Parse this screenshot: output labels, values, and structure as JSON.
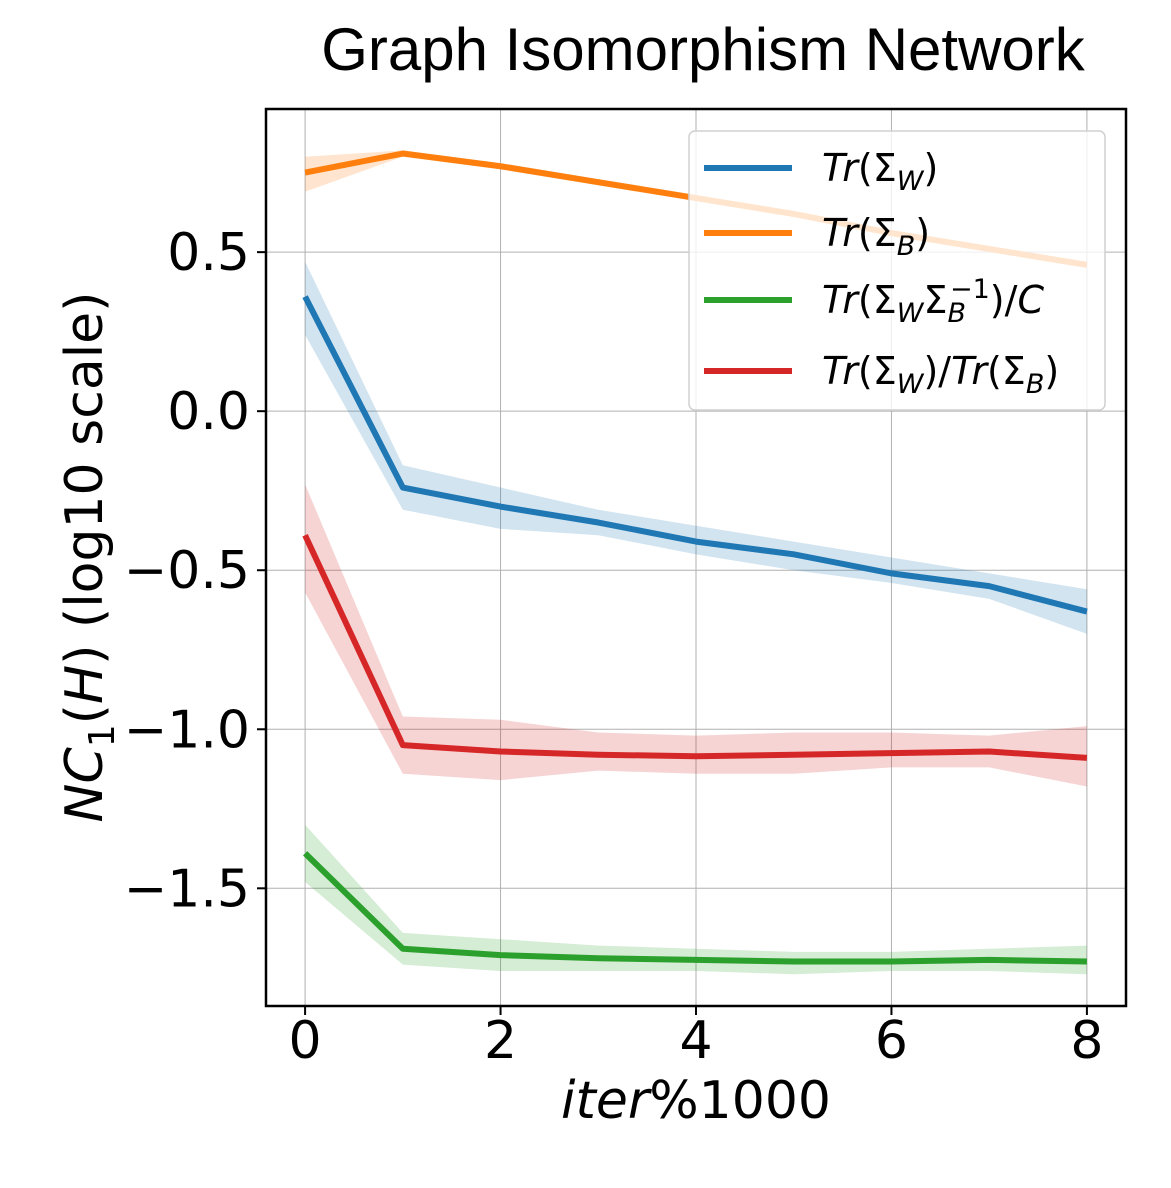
{
  "chart_data": {
    "type": "line",
    "title": "Graph Isomorphism Network",
    "xlabel": "iter%1000",
    "ylabel": "NC1(H) (log10 scale)",
    "xlim": [
      -0.4,
      8.4
    ],
    "ylim": [
      -1.87,
      0.95
    ],
    "xticks": [
      0,
      2,
      4,
      6,
      8
    ],
    "xtick_labels": [
      "0",
      "2",
      "4",
      "6",
      "8"
    ],
    "yticks": [
      0.5,
      0.0,
      -0.5,
      -1.0,
      -1.5
    ],
    "ytick_labels": [
      "0.5",
      "0.0",
      "−0.5",
      "−1.0",
      "−1.5"
    ],
    "grid": true,
    "legend_position": "top-right",
    "x": [
      0,
      1,
      2,
      3,
      4,
      5,
      6,
      7,
      8
    ],
    "series": [
      {
        "name": "Tr(ΣW)",
        "color": "#1f77b4",
        "values": [
          0.36,
          -0.24,
          -0.3,
          -0.35,
          -0.41,
          -0.45,
          -0.51,
          -0.55,
          -0.63
        ],
        "lower": [
          0.24,
          -0.31,
          -0.37,
          -0.39,
          -0.45,
          -0.5,
          -0.54,
          -0.59,
          -0.7
        ],
        "upper": [
          0.47,
          -0.17,
          -0.24,
          -0.31,
          -0.36,
          -0.41,
          -0.46,
          -0.51,
          -0.56
        ]
      },
      {
        "name": "Tr(ΣB)",
        "color": "#ff7f0e",
        "values": [
          0.75,
          0.81,
          0.77,
          0.72,
          0.67,
          0.62,
          0.56,
          0.51,
          0.46
        ],
        "lower": [
          0.69,
          0.8,
          0.76,
          0.71,
          0.66,
          0.61,
          0.55,
          0.5,
          0.45
        ],
        "upper": [
          0.8,
          0.82,
          0.78,
          0.73,
          0.68,
          0.63,
          0.57,
          0.52,
          0.47
        ]
      },
      {
        "name": "Tr(ΣWΣB⁻¹)/C",
        "color": "#2ca02c",
        "values": [
          -1.39,
          -1.69,
          -1.71,
          -1.72,
          -1.725,
          -1.73,
          -1.73,
          -1.725,
          -1.73
        ],
        "lower": [
          -1.48,
          -1.74,
          -1.76,
          -1.76,
          -1.76,
          -1.77,
          -1.76,
          -1.76,
          -1.77
        ],
        "upper": [
          -1.3,
          -1.64,
          -1.66,
          -1.68,
          -1.69,
          -1.7,
          -1.7,
          -1.69,
          -1.68
        ]
      },
      {
        "name": "Tr(ΣW)/Tr(ΣB)",
        "color": "#d62728",
        "values": [
          -0.39,
          -1.05,
          -1.07,
          -1.08,
          -1.085,
          -1.08,
          -1.075,
          -1.07,
          -1.09
        ],
        "lower": [
          -0.57,
          -1.14,
          -1.16,
          -1.13,
          -1.14,
          -1.14,
          -1.12,
          -1.12,
          -1.18
        ],
        "upper": [
          -0.23,
          -0.96,
          -0.97,
          -1.01,
          -1.02,
          -1.01,
          -1.01,
          -1.02,
          -0.99
        ]
      }
    ]
  }
}
